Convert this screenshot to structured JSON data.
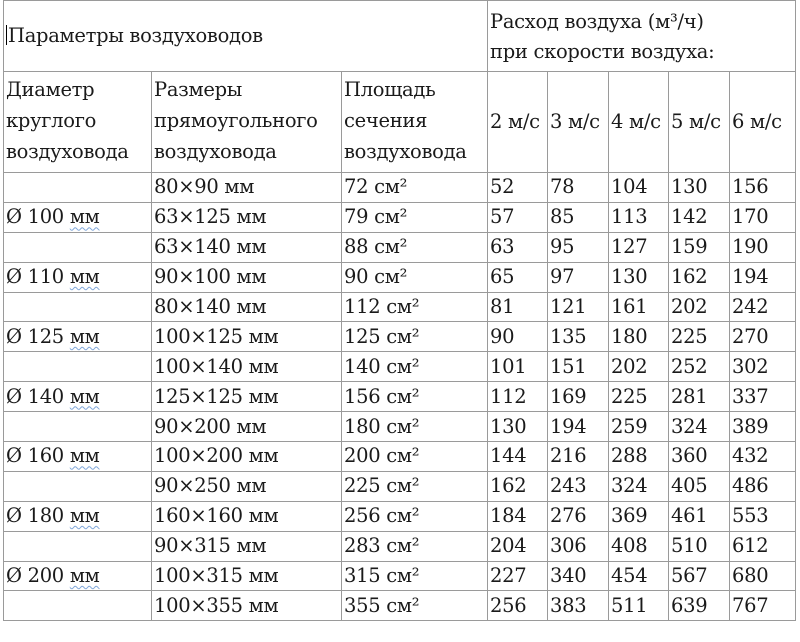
{
  "table": {
    "top_left_header": "Параметры воздуховодов",
    "flow_header_line1": "Расход воздуха (м³/ч)",
    "flow_header_line2": "при скорости воздуха:",
    "col_diameter": "Диаметр круглого воздуховода",
    "col_rect_size": "Размеры прямоугольного воздуховода",
    "col_area": "Площадь сечения воздуховода",
    "speeds": [
      "2 м/с",
      "3 м/с",
      "4 м/с",
      "5 м/с",
      "6 м/с"
    ],
    "rows": [
      {
        "diameter": "",
        "size": "80×90 мм",
        "area": "72 см²",
        "flows": [
          "52",
          "78",
          "104",
          "130",
          "156"
        ]
      },
      {
        "diameter": "Ø 100 мм",
        "size": "63×125 мм",
        "area": "79 см²",
        "flows": [
          "57",
          "85",
          "113",
          "142",
          "170"
        ]
      },
      {
        "diameter": "",
        "size": "63×140 мм",
        "area": "88 см²",
        "flows": [
          "63",
          "95",
          "127",
          "159",
          "190"
        ]
      },
      {
        "diameter": "Ø 110 мм",
        "size": "90×100 мм",
        "area": "90 см²",
        "flows": [
          "65",
          "97",
          "130",
          "162",
          "194"
        ]
      },
      {
        "diameter": "",
        "size": "80×140 мм",
        "area": "112 см²",
        "flows": [
          "81",
          "121",
          "161",
          "202",
          "242"
        ]
      },
      {
        "diameter": "Ø 125 мм",
        "size": "100×125 мм",
        "area": "125 см²",
        "flows": [
          "90",
          "135",
          "180",
          "225",
          "270"
        ]
      },
      {
        "diameter": "",
        "size": "100×140 мм",
        "area": "140 см²",
        "flows": [
          "101",
          "151",
          "202",
          "252",
          "302"
        ]
      },
      {
        "diameter": "Ø 140 мм",
        "size": "125×125 мм",
        "area": "156 см²",
        "flows": [
          "112",
          "169",
          "225",
          "281",
          "337"
        ]
      },
      {
        "diameter": "",
        "size": "90×200 мм",
        "area": "180 см²",
        "flows": [
          "130",
          "194",
          "259",
          "324",
          "389"
        ]
      },
      {
        "diameter": "Ø 160 мм",
        "size": "100×200 мм",
        "area": "200 см²",
        "flows": [
          "144",
          "216",
          "288",
          "360",
          "432"
        ]
      },
      {
        "diameter": "",
        "size": "90×250 мм",
        "area": "225 см²",
        "flows": [
          "162",
          "243",
          "324",
          "405",
          "486"
        ]
      },
      {
        "diameter": "Ø 180 мм",
        "size": "160×160 мм",
        "area": "256 см²",
        "flows": [
          "184",
          "276",
          "369",
          "461",
          "553"
        ]
      },
      {
        "diameter": "",
        "size": "90×315 мм",
        "area": "283 см²",
        "flows": [
          "204",
          "306",
          "408",
          "510",
          "612"
        ]
      },
      {
        "diameter": "Ø 200 мм",
        "size": "100×315 мм",
        "area": "315 см²",
        "flows": [
          "227",
          "340",
          "454",
          "567",
          "680"
        ]
      },
      {
        "diameter": "",
        "size": "100×355 мм",
        "area": "355 см²",
        "flows": [
          "256",
          "383",
          "511",
          "639",
          "767"
        ]
      }
    ]
  }
}
